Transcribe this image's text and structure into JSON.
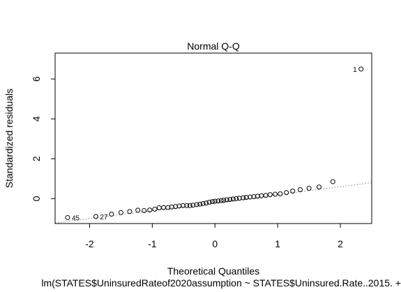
{
  "chart_data": {
    "type": "scatter",
    "title": "Normal Q-Q",
    "xlabel": "Theoretical Quantiles",
    "ylabel": "Standardized residuals",
    "subtitle": "lm(STATES$UninsuredRateof2020assumption ~ STATES$Uninsured.Rate..2015. +",
    "xlim": [
      -2.55,
      2.5
    ],
    "ylim": [
      -1.25,
      7.3
    ],
    "xticks": [
      -2,
      -1,
      0,
      1,
      2
    ],
    "yticks": [
      0,
      2,
      4,
      6
    ],
    "xtick_labels": [
      "-2",
      "-1",
      "0",
      "1",
      "2"
    ],
    "ytick_labels": [
      "0",
      "2",
      "4",
      "6"
    ],
    "points": [
      {
        "x": -2.35,
        "y": -0.95
      },
      {
        "x": -1.9,
        "y": -0.9
      },
      {
        "x": -1.65,
        "y": -0.78
      },
      {
        "x": -1.5,
        "y": -0.7
      },
      {
        "x": -1.36,
        "y": -0.65
      },
      {
        "x": -1.23,
        "y": -0.58
      },
      {
        "x": -1.13,
        "y": -0.6
      },
      {
        "x": -1.04,
        "y": -0.57
      },
      {
        "x": -0.96,
        "y": -0.53
      },
      {
        "x": -0.89,
        "y": -0.46
      },
      {
        "x": -0.82,
        "y": -0.45
      },
      {
        "x": -0.75,
        "y": -0.45
      },
      {
        "x": -0.69,
        "y": -0.42
      },
      {
        "x": -0.63,
        "y": -0.4
      },
      {
        "x": -0.57,
        "y": -0.37
      },
      {
        "x": -0.51,
        "y": -0.35
      },
      {
        "x": -0.45,
        "y": -0.35
      },
      {
        "x": -0.4,
        "y": -0.35
      },
      {
        "x": -0.35,
        "y": -0.33
      },
      {
        "x": -0.29,
        "y": -0.3
      },
      {
        "x": -0.24,
        "y": -0.28
      },
      {
        "x": -0.19,
        "y": -0.25
      },
      {
        "x": -0.14,
        "y": -0.22
      },
      {
        "x": -0.09,
        "y": -0.18
      },
      {
        "x": -0.04,
        "y": -0.15
      },
      {
        "x": 0.0,
        "y": -0.13
      },
      {
        "x": 0.05,
        "y": -0.12
      },
      {
        "x": 0.1,
        "y": -0.1
      },
      {
        "x": 0.14,
        "y": -0.08
      },
      {
        "x": 0.19,
        "y": -0.06
      },
      {
        "x": 0.24,
        "y": -0.04
      },
      {
        "x": 0.29,
        "y": -0.02
      },
      {
        "x": 0.34,
        "y": 0.0
      },
      {
        "x": 0.39,
        "y": 0.02
      },
      {
        "x": 0.45,
        "y": 0.04
      },
      {
        "x": 0.5,
        "y": 0.06
      },
      {
        "x": 0.56,
        "y": 0.08
      },
      {
        "x": 0.62,
        "y": 0.1
      },
      {
        "x": 0.68,
        "y": 0.12
      },
      {
        "x": 0.74,
        "y": 0.14
      },
      {
        "x": 0.81,
        "y": 0.16
      },
      {
        "x": 0.88,
        "y": 0.2
      },
      {
        "x": 0.96,
        "y": 0.22
      },
      {
        "x": 1.04,
        "y": 0.24
      },
      {
        "x": 1.14,
        "y": 0.3
      },
      {
        "x": 1.24,
        "y": 0.38
      },
      {
        "x": 1.36,
        "y": 0.45
      },
      {
        "x": 1.5,
        "y": 0.52
      },
      {
        "x": 1.66,
        "y": 0.58
      },
      {
        "x": 1.88,
        "y": 0.85
      },
      {
        "x": 2.33,
        "y": 6.5
      }
    ],
    "labeled_points": [
      {
        "label": "1",
        "x": 2.33,
        "y": 6.5,
        "side": "left"
      },
      {
        "label": "45",
        "x": -2.35,
        "y": -0.95,
        "side": "right"
      },
      {
        "label": "27",
        "x": -1.9,
        "y": -0.9,
        "side": "right"
      }
    ],
    "reference_line": {
      "x": [
        -2.55,
        2.5
      ],
      "y": [
        -1.22,
        0.8
      ],
      "style": "dotted",
      "color": "#808080"
    },
    "grid": false,
    "legend": "none",
    "point_color": "#000000"
  }
}
